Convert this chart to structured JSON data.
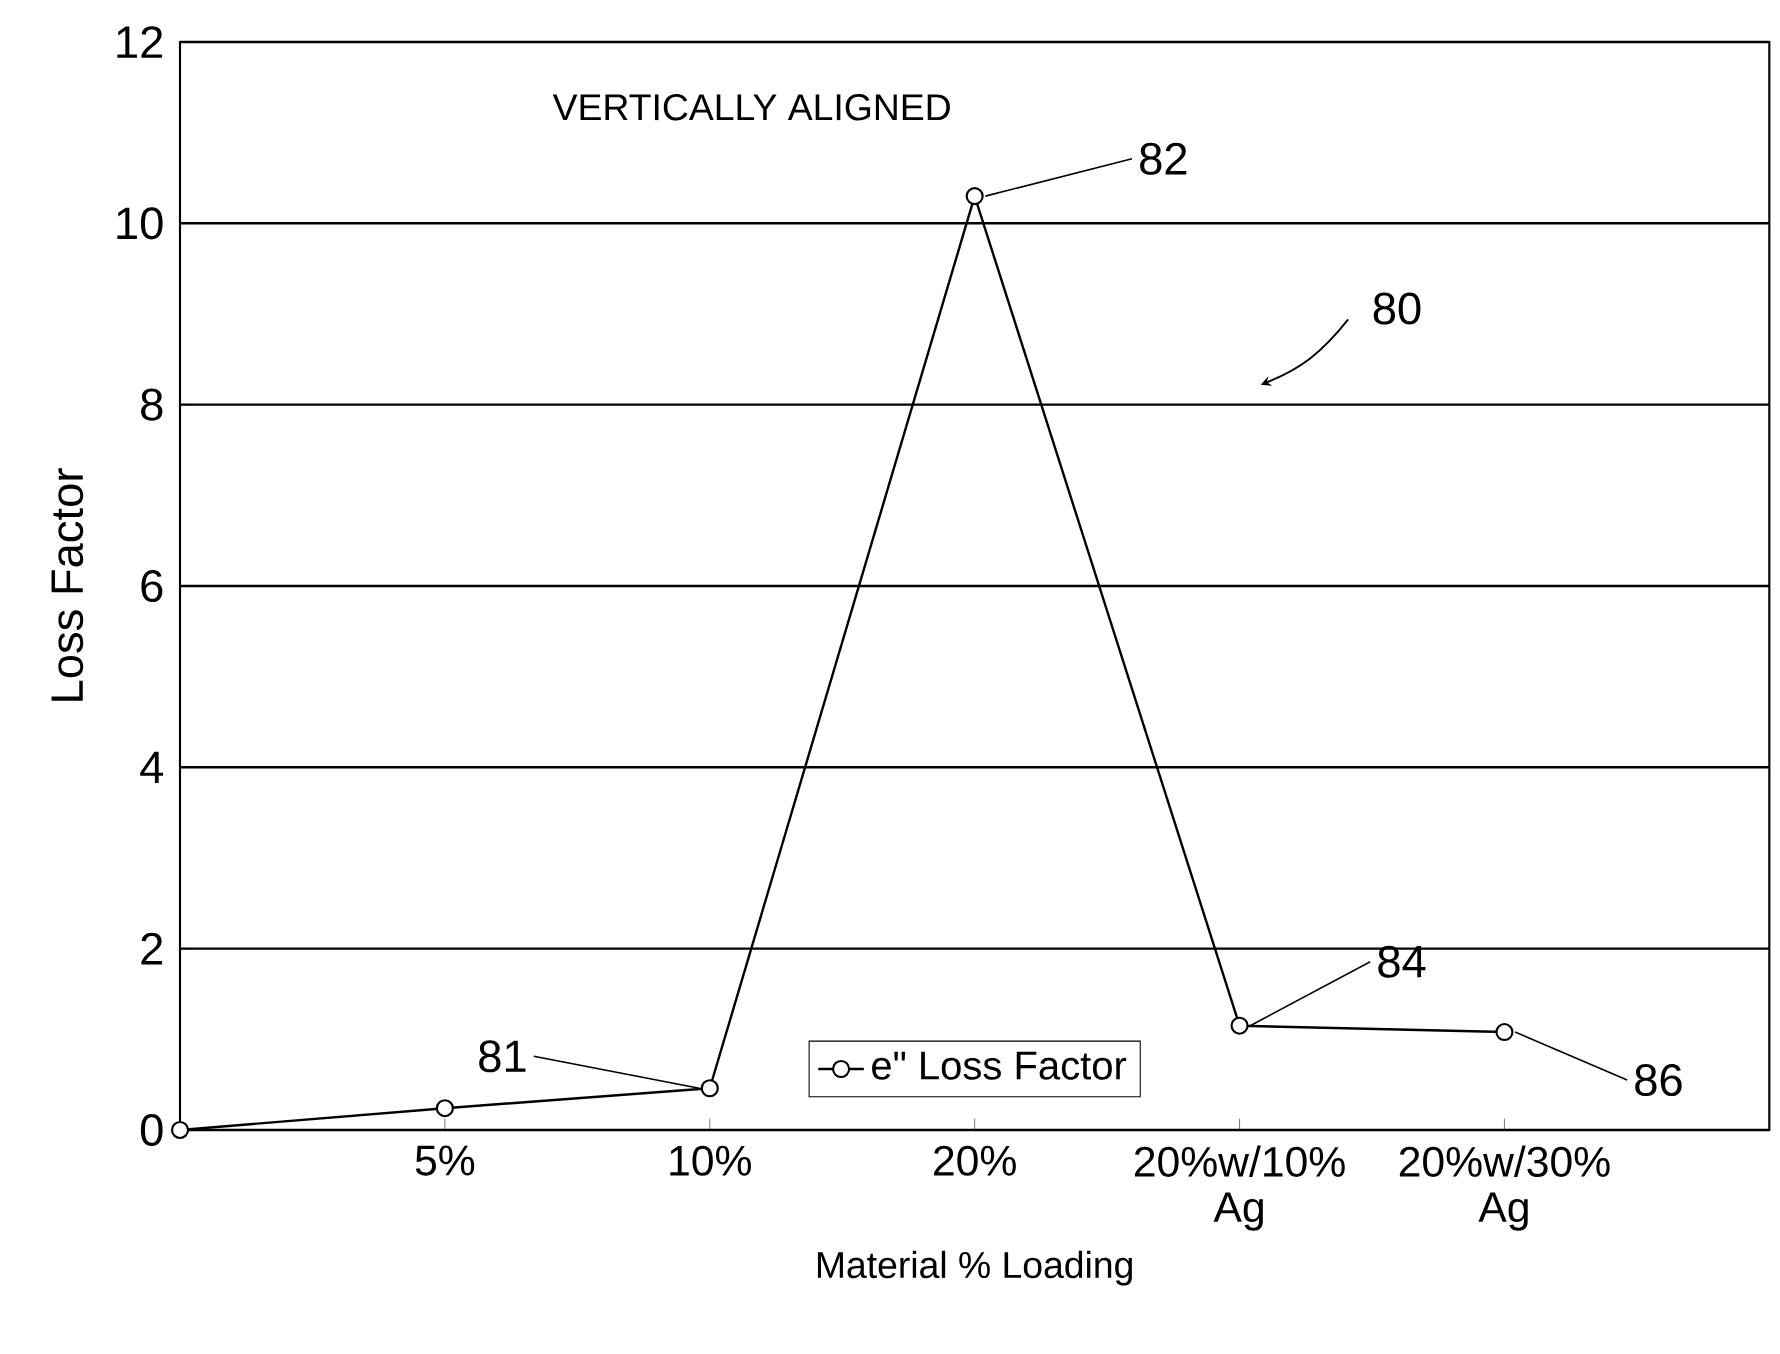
{
  "chart_data": {
    "type": "line",
    "title": "VERTICALLY ALIGNED",
    "xlabel": "Material % Loading",
    "ylabel": "Loss Factor",
    "categories": [
      null,
      "5%",
      "10%",
      "20%",
      "20%w/10% Ag",
      "20%w/30% Ag"
    ],
    "series": [
      {
        "name": "e\" Loss Factor",
        "color": "#000000",
        "values": [
          0,
          0.24,
          0.46,
          10.3,
          1.15,
          1.08
        ]
      }
    ],
    "ylim": [
      0,
      12
    ],
    "yticks": [
      0,
      2,
      4,
      6,
      8,
      10,
      12
    ],
    "grid": "y",
    "legend": "bottom",
    "marker": "circle",
    "line_style": "solid",
    "annotations": [
      {
        "text": "81",
        "x": "10%",
        "y": 0.46
      },
      {
        "text": "82",
        "x": "20%",
        "y": 10.3
      },
      {
        "text": "84",
        "x": "20%w/10% Ag",
        "y": 1.15
      },
      {
        "text": "86",
        "x": "20%w/30% Ag",
        "y": 1.08
      },
      "80"
    ]
  }
}
